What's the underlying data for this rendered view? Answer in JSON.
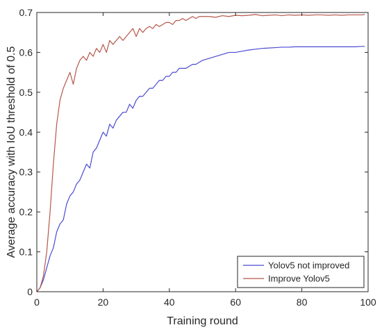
{
  "chart_data": {
    "type": "line",
    "xlabel": "Training round",
    "ylabel": "Average accuracy with IoU threshold of 0.5",
    "xlim": [
      0,
      100
    ],
    "ylim": [
      0,
      0.7
    ],
    "x_ticks": [
      "0",
      "20",
      "40",
      "60",
      "80",
      "100"
    ],
    "y_ticks": [
      "0",
      "0.1",
      "0.2",
      "0.3",
      "0.4",
      "0.5",
      "0.6",
      "0.7"
    ],
    "grid": false,
    "legend_position": "bottom-right",
    "series": [
      {
        "name": "Yolov5 not improved",
        "color": "#4a4ad4",
        "x": [
          0,
          1,
          2,
          3,
          4,
          5,
          6,
          7,
          8,
          9,
          10,
          11,
          12,
          13,
          14,
          15,
          16,
          17,
          18,
          19,
          20,
          21,
          22,
          23,
          24,
          25,
          26,
          27,
          28,
          29,
          30,
          31,
          32,
          33,
          34,
          35,
          36,
          37,
          38,
          39,
          40,
          41,
          42,
          43,
          44,
          45,
          46,
          47,
          48,
          49,
          50,
          52,
          54,
          56,
          58,
          60,
          62,
          64,
          66,
          68,
          70,
          72,
          74,
          76,
          78,
          80,
          82,
          84,
          86,
          88,
          90,
          92,
          94,
          96,
          98,
          99
        ],
        "values": [
          0,
          0.01,
          0.03,
          0.06,
          0.09,
          0.11,
          0.15,
          0.17,
          0.18,
          0.22,
          0.24,
          0.25,
          0.27,
          0.28,
          0.3,
          0.32,
          0.31,
          0.35,
          0.36,
          0.38,
          0.4,
          0.39,
          0.42,
          0.41,
          0.43,
          0.44,
          0.45,
          0.45,
          0.47,
          0.46,
          0.48,
          0.49,
          0.49,
          0.5,
          0.51,
          0.51,
          0.52,
          0.53,
          0.53,
          0.54,
          0.54,
          0.55,
          0.55,
          0.56,
          0.56,
          0.56,
          0.565,
          0.57,
          0.57,
          0.575,
          0.58,
          0.585,
          0.59,
          0.595,
          0.6,
          0.6,
          0.603,
          0.606,
          0.608,
          0.61,
          0.611,
          0.612,
          0.613,
          0.613,
          0.614,
          0.614,
          0.614,
          0.614,
          0.614,
          0.614,
          0.614,
          0.614,
          0.614,
          0.614,
          0.615,
          0.615
        ]
      },
      {
        "name": "Improve Yolov5",
        "color": "#b5574a",
        "x": [
          0,
          1,
          2,
          3,
          4,
          5,
          6,
          7,
          8,
          9,
          10,
          11,
          12,
          13,
          14,
          15,
          16,
          17,
          18,
          19,
          20,
          21,
          22,
          23,
          24,
          25,
          26,
          27,
          28,
          29,
          30,
          31,
          32,
          33,
          34,
          35,
          36,
          37,
          38,
          39,
          40,
          41,
          42,
          43,
          44,
          45,
          46,
          47,
          48,
          49,
          50,
          52,
          54,
          56,
          58,
          60,
          62,
          64,
          66,
          68,
          70,
          72,
          74,
          76,
          78,
          80,
          82,
          84,
          86,
          88,
          90,
          92,
          94,
          96,
          98,
          99
        ],
        "values": [
          0,
          0.01,
          0.04,
          0.1,
          0.2,
          0.32,
          0.42,
          0.48,
          0.51,
          0.53,
          0.55,
          0.52,
          0.56,
          0.58,
          0.59,
          0.58,
          0.6,
          0.59,
          0.61,
          0.6,
          0.62,
          0.6,
          0.63,
          0.62,
          0.63,
          0.64,
          0.63,
          0.64,
          0.65,
          0.66,
          0.64,
          0.66,
          0.65,
          0.66,
          0.665,
          0.66,
          0.67,
          0.665,
          0.67,
          0.675,
          0.675,
          0.67,
          0.68,
          0.68,
          0.685,
          0.68,
          0.685,
          0.69,
          0.685,
          0.69,
          0.69,
          0.69,
          0.688,
          0.692,
          0.69,
          0.693,
          0.692,
          0.693,
          0.695,
          0.692,
          0.693,
          0.694,
          0.692,
          0.694,
          0.693,
          0.694,
          0.693,
          0.694,
          0.694,
          0.693,
          0.694,
          0.693,
          0.694,
          0.694,
          0.694,
          0.695
        ]
      }
    ]
  }
}
